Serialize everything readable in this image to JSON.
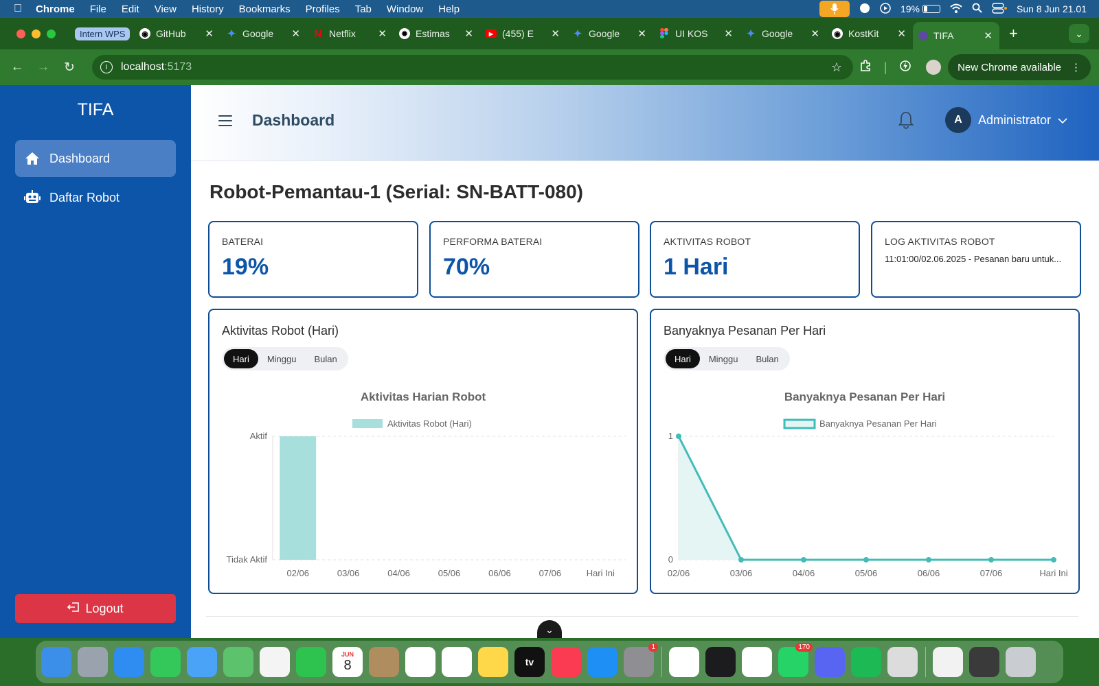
{
  "menubar": {
    "app": "Chrome",
    "items": [
      "File",
      "Edit",
      "View",
      "History",
      "Bookmarks",
      "Profiles",
      "Tab",
      "Window",
      "Help"
    ],
    "battery_pct": "19%",
    "battery_level": 0.19,
    "datetime": "Sun 8 Jun  21.01"
  },
  "tabs": {
    "group_label": "Intern WPS",
    "items": [
      {
        "label": "GitHub",
        "icon": "github-icon"
      },
      {
        "label": "Google",
        "icon": "gemini-icon"
      },
      {
        "label": "Netflix",
        "icon": "netflix-icon"
      },
      {
        "label": "Estimas",
        "icon": "openai-icon"
      },
      {
        "label": "(455) E",
        "icon": "youtube-icon"
      },
      {
        "label": "Google",
        "icon": "gemini-icon"
      },
      {
        "label": "UI KOS",
        "icon": "figma-icon"
      },
      {
        "label": "Google",
        "icon": "gemini-icon"
      },
      {
        "label": "KostKit",
        "icon": "github-icon"
      },
      {
        "label": "TIFA",
        "icon": "page-icon"
      }
    ]
  },
  "addressbar": {
    "host": "localhost",
    "port": ":5173",
    "new_chrome_label": "New Chrome available"
  },
  "sidebar": {
    "brand": "TIFA",
    "items": [
      {
        "label": "Dashboard",
        "icon": "home-icon"
      },
      {
        "label": "Daftar Robot",
        "icon": "robot-icon"
      }
    ],
    "logout_label": "Logout"
  },
  "header": {
    "title": "Dashboard",
    "user_initial": "A",
    "user_name": "Administrator"
  },
  "robot": {
    "title": "Robot-Pemantau-1 (Serial: SN-BATT-080)"
  },
  "cards": [
    {
      "label": "BATERAI",
      "value": "19%"
    },
    {
      "label": "PERFORMA BATERAI",
      "value": "70%"
    },
    {
      "label": "AKTIVITAS ROBOT",
      "value": "1 Hari"
    },
    {
      "label": "LOG AKTIVITAS ROBOT",
      "value": "11:01:00/02.06.2025 - Pesanan baru untuk..."
    }
  ],
  "panels": [
    {
      "title": "Aktivitas Robot (Hari)",
      "segments": [
        "Hari",
        "Minggu",
        "Bulan"
      ],
      "active": "Hari"
    },
    {
      "title": "Banyaknya Pesanan Per Hari",
      "segments": [
        "Hari",
        "Minggu",
        "Bulan"
      ],
      "active": "Hari"
    }
  ],
  "colors": {
    "sidebar": "#0d55a8",
    "card_border": "#0d4d96",
    "bar_fill": "#a6dfdc",
    "line": "#41bcb9",
    "logout": "#dc3545"
  },
  "chart_data": [
    {
      "type": "bar",
      "title": "Aktivitas Harian Robot",
      "categories": [
        "02/06",
        "03/06",
        "04/06",
        "05/06",
        "06/06",
        "07/06",
        "Hari Ini"
      ],
      "series": [
        {
          "name": "Aktivitas Robot (Hari)",
          "values": [
            1,
            0,
            0,
            0,
            0,
            0,
            0
          ]
        }
      ],
      "y_tick_labels": [
        "Tidak Aktif",
        "Aktif"
      ],
      "ylim": [
        0,
        1
      ],
      "legend": "top",
      "grid": true
    },
    {
      "type": "area",
      "title": "Banyaknya Pesanan Per Hari",
      "categories": [
        "02/06",
        "03/06",
        "04/06",
        "05/06",
        "06/06",
        "07/06",
        "Hari Ini"
      ],
      "series": [
        {
          "name": "Banyaknya Pesanan Per Hari",
          "values": [
            1,
            0,
            0,
            0,
            0,
            0,
            0
          ]
        }
      ],
      "y_ticks": [
        "0",
        "1"
      ],
      "ylim": [
        0,
        1
      ],
      "legend": "top",
      "grid": true
    }
  ],
  "dock": {
    "apps": [
      "finder-icon",
      "launchpad-icon",
      "safari-icon",
      "messages-icon",
      "mail-icon",
      "maps-icon",
      "photos-icon",
      "facetime-icon",
      "calendar-icon",
      "contacts-icon",
      "reminders-icon",
      "freeform-icon",
      "notes-icon",
      "appletv-icon",
      "music-icon",
      "appstore-icon",
      "settings-icon",
      "chrome-icon",
      "terminal-icon",
      "vscode-icon",
      "whatsapp-icon",
      "discord-icon",
      "spotify-icon",
      "tableplus-icon",
      "preview-icon",
      "screenshot-icon",
      "trash-icon"
    ],
    "calendar_month": "JUN",
    "calendar_day": "8",
    "settings_badge": "1",
    "whatsapp_badge": "170",
    "tv_label": "tv"
  }
}
